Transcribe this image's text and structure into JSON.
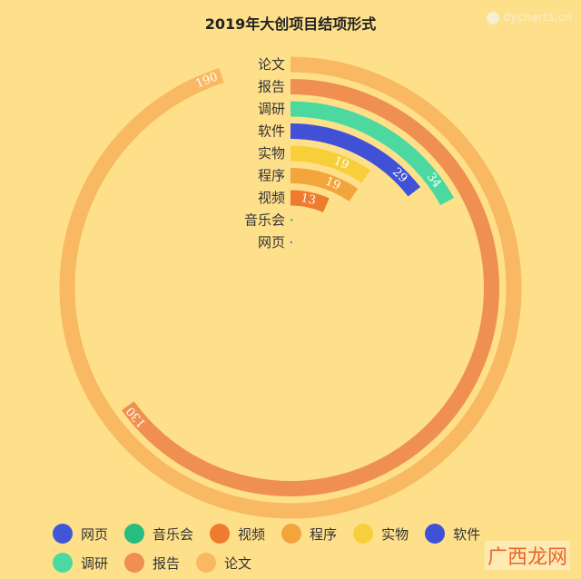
{
  "watermark_top": "dycharts.cn",
  "watermark_bottom": "广西龙网",
  "chart_data": {
    "type": "radial-bar",
    "title": "2019年大创项目结项形式",
    "max": 200,
    "series": [
      {
        "name": "网页",
        "value": 1,
        "color": "#4056D6"
      },
      {
        "name": "音乐会",
        "value": 1,
        "color": "#26BD7E"
      },
      {
        "name": "视频",
        "value": 13,
        "color": "#EE7B2E"
      },
      {
        "name": "程序",
        "value": 19,
        "color": "#F2A53A"
      },
      {
        "name": "实物",
        "value": 19,
        "color": "#F6CF3A"
      },
      {
        "name": "软件",
        "value": 29,
        "color": "#4151D6"
      },
      {
        "name": "调研",
        "value": 34,
        "color": "#4CD9A0"
      },
      {
        "name": "报告",
        "value": 130,
        "color": "#EF8F50"
      },
      {
        "name": "论文",
        "value": 190,
        "color": "#F9B862"
      }
    ],
    "legend_order": [
      "网页",
      "音乐会",
      "视频",
      "程序",
      "实物",
      "软件",
      "调研",
      "报告",
      "论文"
    ]
  }
}
